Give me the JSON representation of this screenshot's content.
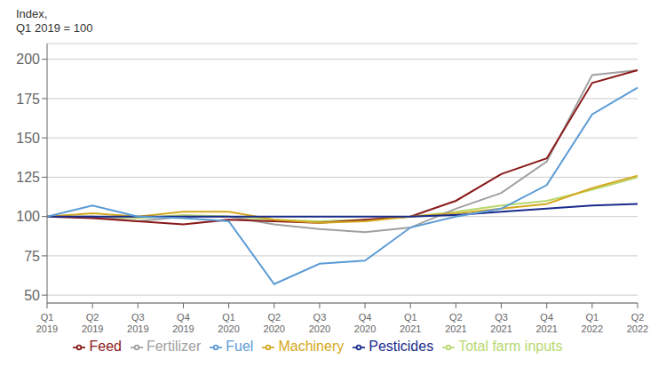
{
  "chart_data": {
    "type": "line",
    "ylabel": "Index,\nQ1 2019 = 100",
    "categories": [
      "Q1\n2019",
      "Q2\n2019",
      "Q3\n2019",
      "Q4\n2019",
      "Q1\n2020",
      "Q2\n2020",
      "Q3\n2020",
      "Q4\n2020",
      "Q1\n2021",
      "Q2\n2021",
      "Q3\n2021",
      "Q4\n2021",
      "Q1\n2022",
      "Q2\n2022"
    ],
    "series": [
      {
        "name": "Total farm inputs",
        "color": "#b8d96e",
        "values": [
          100,
          100,
          99,
          101,
          100,
          98,
          97,
          98,
          100,
          103,
          107,
          110,
          117,
          125
        ]
      },
      {
        "name": "Fertilizer",
        "color": "#a0a0a0",
        "values": [
          100,
          100,
          97,
          100,
          100,
          95,
          92,
          90,
          93,
          105,
          115,
          135,
          190,
          193
        ]
      },
      {
        "name": "Feed",
        "color": "#8b1a1a",
        "values": [
          100,
          99,
          97,
          95,
          98,
          97,
          96,
          98,
          100,
          110,
          127,
          137,
          185,
          193
        ]
      },
      {
        "name": "Machinery",
        "color": "#d4a820",
        "values": [
          100,
          102,
          100,
          103,
          103,
          98,
          96,
          97,
          100,
          102,
          105,
          108,
          118,
          126
        ]
      },
      {
        "name": "Pesticides",
        "color": "#1a2b8b",
        "values": [
          100,
          100,
          100,
          100,
          100,
          100,
          100,
          100,
          100,
          101,
          103,
          105,
          107,
          108
        ]
      },
      {
        "name": "Fuel",
        "color": "#5b9bd5",
        "values": [
          100,
          107,
          100,
          99,
          97,
          57,
          70,
          72,
          93,
          100,
          105,
          120,
          165,
          182
        ]
      }
    ],
    "ylim": [
      45,
      210
    ],
    "yticks": [
      50,
      75,
      100,
      125,
      150,
      175,
      200
    ],
    "grid": true,
    "legend": "bottom"
  }
}
